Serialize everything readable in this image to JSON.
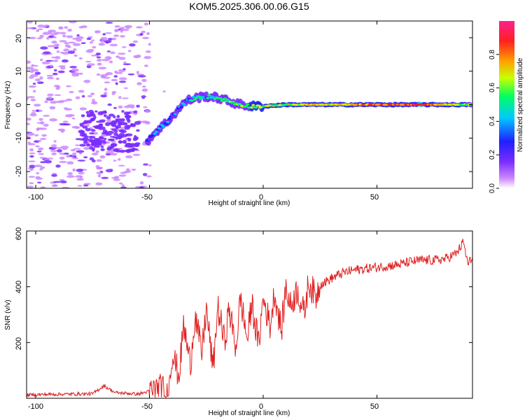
{
  "title": "KOM5.2025.306.00.06.G15",
  "colors": {
    "snr_line": "#e02020",
    "colormap": [
      "#cc88ff",
      "#7a2cff",
      "#2020ff",
      "#00c8ff",
      "#00ff60",
      "#c8ff00",
      "#ffa000",
      "#ff2020",
      "#ff2090"
    ]
  },
  "chart_data": [
    {
      "type": "heatmap",
      "name": "spectrogram",
      "xlabel": "Height of straight line (km)",
      "ylabel": "Frequency (Hz)",
      "xlim": [
        -104,
        92
      ],
      "ylim": [
        -25,
        25
      ],
      "xticks": [
        "-100",
        "-50",
        "0",
        "50"
      ],
      "yticks": [
        "-20",
        "-10",
        "0",
        "10",
        "20"
      ],
      "colorbar": {
        "label": "Normalized spectral amplitude",
        "range": [
          0,
          1
        ],
        "ticks": [
          "0.0",
          "0.2",
          "0.4",
          "0.6",
          "0.8"
        ]
      },
      "ridge": [
        {
          "h": -51,
          "f": -11,
          "a": 0.25
        },
        {
          "h": -47,
          "f": -8,
          "a": 0.35
        },
        {
          "h": -42,
          "f": -5,
          "a": 0.3
        },
        {
          "h": -38,
          "f": -2,
          "a": 0.28
        },
        {
          "h": -34,
          "f": 1,
          "a": 0.35
        },
        {
          "h": -30,
          "f": 2,
          "a": 0.45
        },
        {
          "h": -25,
          "f": 2.5,
          "a": 0.4
        },
        {
          "h": -20,
          "f": 2,
          "a": 0.45
        },
        {
          "h": -15,
          "f": 1,
          "a": 0.5
        },
        {
          "h": -10,
          "f": 0,
          "a": 0.45
        },
        {
          "h": -5,
          "f": -0.5,
          "a": 0.55
        },
        {
          "h": 0,
          "f": -0.5,
          "a": 0.6
        },
        {
          "h": 10,
          "f": 0,
          "a": 0.55
        },
        {
          "h": 20,
          "f": 0,
          "a": 0.75
        },
        {
          "h": 30,
          "f": 0,
          "a": 0.6
        },
        {
          "h": 40,
          "f": 0,
          "a": 0.7
        },
        {
          "h": 50,
          "f": 0,
          "a": 0.8
        },
        {
          "h": 60,
          "f": 0,
          "a": 0.85
        },
        {
          "h": 70,
          "f": 0,
          "a": 0.9
        },
        {
          "h": 80,
          "f": 0,
          "a": 0.7
        },
        {
          "h": 92,
          "f": 0,
          "a": 0.5
        }
      ]
    },
    {
      "type": "line",
      "name": "snr",
      "xlabel": "Height of straight line (km)",
      "ylabel": "SNR (v/v)",
      "xlim": [
        -104,
        92
      ],
      "ylim": [
        0,
        600
      ],
      "xticks": [
        "-100",
        "-50",
        "0",
        "50"
      ],
      "yticks": [
        "200",
        "400",
        "600"
      ],
      "series": [
        {
          "name": "SNR",
          "x": [
            -104,
            -95,
            -85,
            -75,
            -70,
            -65,
            -60,
            -55,
            -50,
            -45,
            -42,
            -40,
            -37,
            -35,
            -32,
            -30,
            -27,
            -25,
            -22,
            -20,
            -17,
            -15,
            -12,
            -10,
            -7,
            -5,
            -2,
            0,
            3,
            5,
            8,
            10,
            12,
            15,
            18,
            20,
            23,
            25,
            28,
            30,
            35,
            40,
            45,
            50,
            55,
            60,
            65,
            70,
            75,
            80,
            85,
            88,
            90,
            92
          ],
          "y": [
            12,
            14,
            15,
            16,
            45,
            20,
            18,
            15,
            25,
            35,
            20,
            160,
            80,
            260,
            120,
            300,
            160,
            320,
            100,
            330,
            200,
            320,
            180,
            360,
            210,
            340,
            190,
            360,
            260,
            380,
            240,
            400,
            330,
            390,
            300,
            420,
            360,
            410,
            420,
            430,
            450,
            460,
            465,
            470,
            475,
            480,
            490,
            495,
            495,
            500,
            520,
            560,
            480,
            505
          ]
        }
      ]
    }
  ]
}
